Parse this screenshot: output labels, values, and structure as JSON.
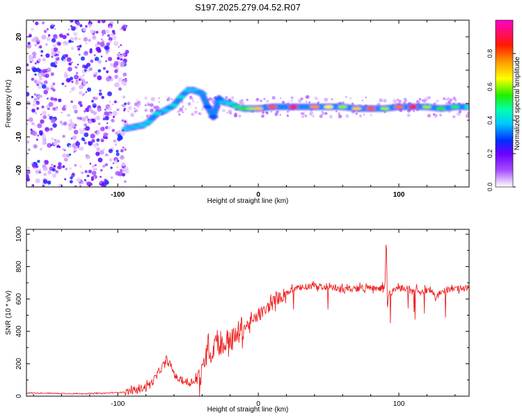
{
  "figure_title": "S197.2025.279.04.52.R07",
  "chart_data": [
    {
      "type": "heatmap",
      "title": "S197.2025.279.04.52.R07",
      "xlabel": "Height of straight line (km)",
      "ylabel": "Frequency (Hz)",
      "xlim": [
        -165,
        150
      ],
      "ylim": [
        -25,
        25
      ],
      "x_ticks": [
        -100,
        0,
        100
      ],
      "x_tick_labels": [
        "-100",
        "0",
        "100"
      ],
      "y_ticks": [
        -20,
        -10,
        0,
        10,
        20
      ],
      "y_tick_labels": [
        "-20",
        "-10",
        "0",
        "10",
        "20"
      ],
      "colorbar": {
        "label": "Normalized spectral amplitude",
        "range": [
          0,
          1
        ],
        "ticks": [
          0.0,
          0.2,
          0.4,
          0.6,
          0.8
        ],
        "tick_labels": [
          "0.0",
          "0.2",
          "0.4",
          "0.6",
          "0.8"
        ]
      },
      "noise_region": {
        "x": [
          -165,
          -93
        ],
        "freq": [
          -25,
          25
        ],
        "amplitude": 0.2
      },
      "ridge": [
        {
          "x": -94,
          "freq": -7.5,
          "amp": 0.38
        },
        {
          "x": -88,
          "freq": -7.0,
          "amp": 0.38
        },
        {
          "x": -82,
          "freq": -6.5,
          "amp": 0.4
        },
        {
          "x": -78,
          "freq": -5.5,
          "amp": 0.4
        },
        {
          "x": -72,
          "freq": -3.0,
          "amp": 0.42
        },
        {
          "x": -66,
          "freq": -2.0,
          "amp": 0.4
        },
        {
          "x": -60,
          "freq": -0.5,
          "amp": 0.42
        },
        {
          "x": -55,
          "freq": 2.0,
          "amp": 0.42
        },
        {
          "x": -50,
          "freq": 4.0,
          "amp": 0.4
        },
        {
          "x": -46,
          "freq": 4.0,
          "amp": 0.38
        },
        {
          "x": -40,
          "freq": 3.0,
          "amp": 0.35
        },
        {
          "x": -36,
          "freq": -1.0,
          "amp": 0.3
        },
        {
          "x": -32,
          "freq": -4.0,
          "amp": 0.3
        },
        {
          "x": -28,
          "freq": 1.5,
          "amp": 0.32
        },
        {
          "x": -25,
          "freq": 0.5,
          "amp": 0.38
        },
        {
          "x": -20,
          "freq": 0.0,
          "amp": 0.42
        },
        {
          "x": -15,
          "freq": -1.0,
          "amp": 0.5
        },
        {
          "x": -10,
          "freq": -1.5,
          "amp": 0.55
        },
        {
          "x": -5,
          "freq": -1.5,
          "amp": 0.6
        },
        {
          "x": 0,
          "freq": -1.5,
          "amp": 0.7
        },
        {
          "x": 10,
          "freq": -1.0,
          "amp": 0.8
        },
        {
          "x": 25,
          "freq": -1.0,
          "amp": 0.9
        },
        {
          "x": 40,
          "freq": -1.0,
          "amp": 0.75
        },
        {
          "x": 50,
          "freq": -1.0,
          "amp": 0.65
        },
        {
          "x": 60,
          "freq": -1.0,
          "amp": 0.6
        },
        {
          "x": 70,
          "freq": -1.5,
          "amp": 0.7
        },
        {
          "x": 80,
          "freq": -1.5,
          "amp": 0.8
        },
        {
          "x": 90,
          "freq": -1.5,
          "amp": 0.6
        },
        {
          "x": 100,
          "freq": -1.0,
          "amp": 0.78
        },
        {
          "x": 110,
          "freq": -1.0,
          "amp": 0.85
        },
        {
          "x": 120,
          "freq": -1.0,
          "amp": 0.6
        },
        {
          "x": 130,
          "freq": -1.5,
          "amp": 0.55
        },
        {
          "x": 140,
          "freq": -1.0,
          "amp": 0.5
        },
        {
          "x": 150,
          "freq": -1.0,
          "amp": 0.45
        }
      ]
    },
    {
      "type": "line",
      "xlabel": "Height of straight line (km)",
      "ylabel": "SNR (10 * v/v)",
      "xlim": [
        -165,
        150
      ],
      "ylim": [
        0,
        1030
      ],
      "x_ticks": [
        -100,
        0,
        100
      ],
      "x_tick_labels": [
        "-100",
        "0",
        "100"
      ],
      "y_ticks": [
        0,
        200,
        400,
        600,
        800,
        1000
      ],
      "y_tick_labels": [
        "0",
        "200",
        "400",
        "600",
        "800",
        "1000"
      ],
      "color": "#ee2222",
      "series": [
        {
          "name": "SNR",
          "x": [
            -165,
            -150,
            -130,
            -110,
            -95,
            -85,
            -80,
            -75,
            -70,
            -65,
            -62,
            -58,
            -55,
            -50,
            -45,
            -40,
            -36,
            -33,
            -30,
            -27,
            -24,
            -21,
            -18,
            -15,
            -12,
            -9,
            -6,
            -3,
            0,
            5,
            10,
            15,
            20,
            25,
            30,
            40,
            50,
            60,
            70,
            80,
            85,
            90,
            91,
            92,
            93,
            95,
            100,
            110,
            120,
            125,
            126,
            130,
            140,
            150
          ],
          "y": [
            20,
            18,
            15,
            18,
            25,
            40,
            60,
            90,
            160,
            220,
            180,
            110,
            100,
            80,
            100,
            130,
            330,
            250,
            380,
            300,
            320,
            360,
            340,
            380,
            420,
            430,
            450,
            470,
            500,
            530,
            580,
            610,
            640,
            660,
            670,
            680,
            670,
            660,
            665,
            670,
            660,
            680,
            960,
            520,
            650,
            640,
            670,
            660,
            650,
            640,
            600,
            650,
            660,
            670
          ]
        }
      ]
    }
  ]
}
